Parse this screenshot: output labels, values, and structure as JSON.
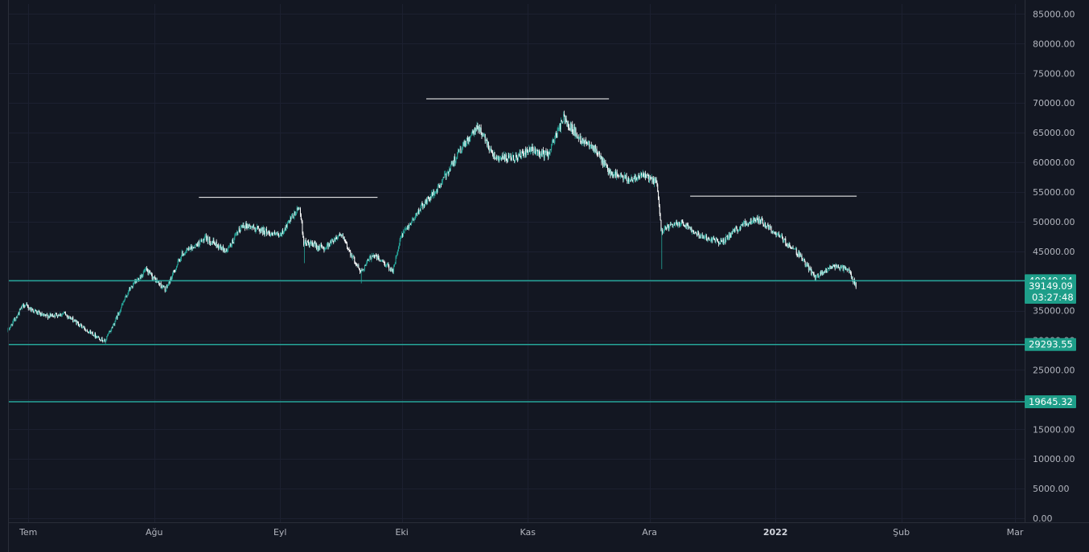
{
  "colors": {
    "background": "#131722",
    "grid": "#1c2030",
    "axis_line": "#2a2e39",
    "axis_text": "#b2b5be",
    "candle_up": "#26a69a",
    "candle_down": "#ffffff",
    "support_line": "#26a69a",
    "badge": "#1e9e89",
    "resistance_line": "#ffffff"
  },
  "chart_data": {
    "type": "candlestick",
    "y_axis": {
      "range": [
        0,
        87500
      ],
      "ticks": [
        "85000.00",
        "80000.00",
        "75000.00",
        "70000.00",
        "65000.00",
        "60000.00",
        "55000.00",
        "50000.00",
        "45000.00",
        "40000.00",
        "35000.00",
        "30000.00",
        "25000.00",
        "20000.00",
        "15000.00",
        "10000.00",
        "5000.00",
        "0.00"
      ]
    },
    "x_axis": {
      "labels": [
        {
          "text": "Tem",
          "date": "2021-07-01",
          "bold": false
        },
        {
          "text": "Ağu",
          "date": "2021-08-01",
          "bold": false
        },
        {
          "text": "Eyl",
          "date": "2021-09-01",
          "bold": false
        },
        {
          "text": "Eki",
          "date": "2021-10-01",
          "bold": false
        },
        {
          "text": "Kas",
          "date": "2021-11-01",
          "bold": false
        },
        {
          "text": "Ara",
          "date": "2021-12-01",
          "bold": false
        },
        {
          "text": "2022",
          "date": "2022-01-01",
          "bold": true
        },
        {
          "text": "Şub",
          "date": "2022-02-01",
          "bold": false
        },
        {
          "text": "Mar",
          "date": "2022-03-01",
          "bold": false
        }
      ],
      "range": [
        "2021-06-26",
        "2022-03-01"
      ]
    },
    "price_anchors": [
      [
        "2021-06-26",
        31500
      ],
      [
        "2021-06-30",
        36000
      ],
      [
        "2021-07-05",
        34000
      ],
      [
        "2021-07-10",
        34500
      ],
      [
        "2021-07-15",
        32000
      ],
      [
        "2021-07-20",
        29800
      ],
      [
        "2021-07-22",
        32500
      ],
      [
        "2021-07-26",
        38500
      ],
      [
        "2021-07-30",
        41800
      ],
      [
        "2021-08-04",
        38500
      ],
      [
        "2021-08-08",
        44500
      ],
      [
        "2021-08-14",
        47200
      ],
      [
        "2021-08-19",
        45000
      ],
      [
        "2021-08-23",
        49500
      ],
      [
        "2021-08-28",
        48500
      ],
      [
        "2021-09-01",
        47500
      ],
      [
        "2021-09-06",
        52500
      ],
      [
        "2021-09-07",
        46500
      ],
      [
        "2021-09-12",
        45500
      ],
      [
        "2021-09-16",
        48000
      ],
      [
        "2021-09-21",
        41500
      ],
      [
        "2021-09-24",
        44500
      ],
      [
        "2021-09-29",
        41800
      ],
      [
        "2021-10-01",
        47500
      ],
      [
        "2021-10-06",
        52500
      ],
      [
        "2021-10-10",
        55500
      ],
      [
        "2021-10-15",
        61500
      ],
      [
        "2021-10-20",
        66000
      ],
      [
        "2021-10-24",
        61000
      ],
      [
        "2021-10-28",
        60500
      ],
      [
        "2021-11-02",
        62000
      ],
      [
        "2021-11-06",
        61200
      ],
      [
        "2021-11-10",
        67500
      ],
      [
        "2021-11-14",
        64000
      ],
      [
        "2021-11-17",
        63000
      ],
      [
        "2021-11-21",
        58500
      ],
      [
        "2021-11-26",
        57000
      ],
      [
        "2021-11-29",
        58000
      ],
      [
        "2021-12-03",
        56500
      ],
      [
        "2021-12-04",
        48500
      ],
      [
        "2021-12-09",
        50000
      ],
      [
        "2021-12-14",
        47500
      ],
      [
        "2021-12-19",
        46500
      ],
      [
        "2021-12-24",
        49500
      ],
      [
        "2021-12-28",
        50500
      ],
      [
        "2022-01-03",
        47000
      ],
      [
        "2022-01-07",
        44500
      ],
      [
        "2022-01-11",
        40500
      ],
      [
        "2022-01-15",
        42500
      ],
      [
        "2022-01-19",
        42000
      ],
      [
        "2022-01-21",
        39149.09
      ]
    ],
    "support_levels": [
      {
        "price": 40040.94,
        "label": "40040.94"
      },
      {
        "price": 29293.55,
        "label": "29293.55"
      },
      {
        "price": 19645.32,
        "label": "19645.32"
      }
    ],
    "resistance_lines": [
      {
        "price": 54100,
        "start": "2021-08-12",
        "end": "2021-09-25"
      },
      {
        "price": 70700,
        "start": "2021-10-07",
        "end": "2021-11-21"
      },
      {
        "price": 54300,
        "start": "2021-12-11",
        "end": "2022-01-21"
      }
    ],
    "last_price": {
      "value": "39149.09",
      "countdown": "03:27:48"
    }
  }
}
